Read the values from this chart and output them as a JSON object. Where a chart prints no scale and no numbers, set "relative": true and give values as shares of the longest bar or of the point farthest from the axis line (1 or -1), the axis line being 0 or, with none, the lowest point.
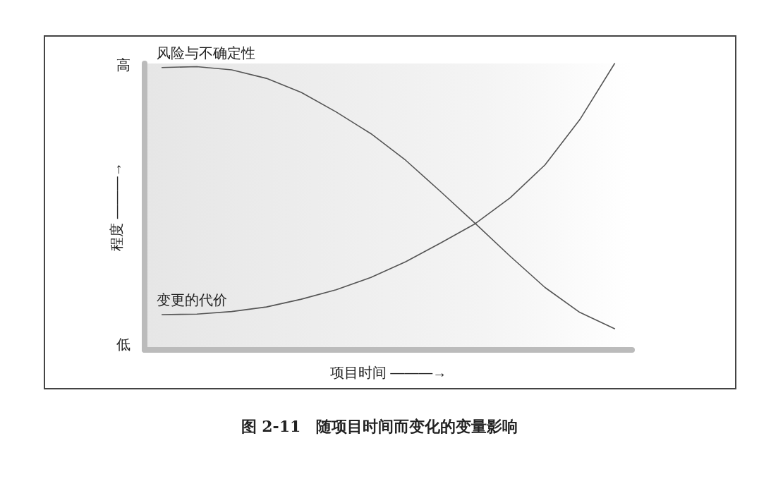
{
  "chart_data": {
    "type": "line",
    "title": "图 2-11　随项目时间而变化的变量影响",
    "xlabel": "项目时间 ———→",
    "ylabel": "程度 ———→",
    "relative": true,
    "categories": [
      null,
      null,
      null,
      null,
      null,
      null,
      null,
      null,
      null,
      null,
      null,
      null,
      null,
      null
    ],
    "series": [
      {
        "name": "风险与不确定性",
        "color": "#555555",
        "values": [
          0.986,
          0.989,
          0.978,
          0.948,
          0.899,
          0.831,
          0.755,
          0.662,
          0.553,
          0.441,
          0.327,
          0.218,
          0.131,
          0.074
        ]
      },
      {
        "name": "变更的代价",
        "color": "#555555",
        "values": [
          0.123,
          0.125,
          0.134,
          0.15,
          0.177,
          0.21,
          0.253,
          0.308,
          0.373,
          0.441,
          0.531,
          0.646,
          0.804,
          1.0
        ]
      }
    ],
    "annotations": [
      "高",
      "低"
    ],
    "legend": false,
    "grid": false,
    "marker": "none",
    "line_style": "solid"
  }
}
